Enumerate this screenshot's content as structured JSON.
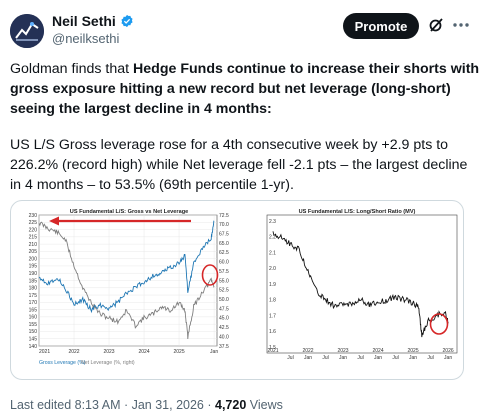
{
  "post": {
    "author_name": "Neil Sethi",
    "author_handle": "@neilksethi",
    "promote_label": "Promote",
    "text_intro": "Goldman finds that ",
    "text_bold": "Hedge Funds continue to increase their shorts with gross exposure hitting a new record but net leverage (long-short) seeing the largest decline in 4 months:",
    "text_2": "US L/S Gross leverage rose for a 4th consecutive week by +2.9 pts to 226.2% (record high) while Net leverage fell -2.1 pts – the largest decline in 4 months – to 53.5% (69th percentile 1-yr).",
    "last_edited": "Last edited 8:13 AM · Jan 31, 2026 · ",
    "views_count": "4,720",
    "views_label": " Views"
  },
  "icons": {
    "verified": "verified-badge-icon",
    "grok": "grok-icon",
    "more": "more-icon"
  },
  "colors": {
    "verified": "#1d9bf0",
    "gross_series": "#1f77b4",
    "net_series": "#7f7f7f",
    "highlight": "#d62728"
  },
  "chart_data": [
    {
      "type": "line",
      "title": "US Fundamental L/S: Gross vs Net Leverage",
      "x_tick_labels": [
        "2021",
        "2022",
        "2023",
        "2024",
        "2025",
        "Jan"
      ],
      "y_left_ticks": [
        "230",
        "225",
        "220",
        "215",
        "210",
        "205",
        "200",
        "195",
        "190",
        "185",
        "180",
        "175",
        "170",
        "165",
        "160",
        "155",
        "150",
        "145",
        "140"
      ],
      "y_right_ticks": [
        "72.5",
        "70.0",
        "67.5",
        "65.0",
        "62.5",
        "60.0",
        "57.5",
        "55.0",
        "52.5",
        "50.0",
        "47.5",
        "45.0",
        "42.5",
        "40.0",
        "37.5"
      ],
      "ylim_left": [
        140,
        230
      ],
      "ylim_right": [
        37.5,
        72.5
      ],
      "legend": [
        "Gross Leverage (%)",
        "Net Leverage (%, right)"
      ],
      "legend_position": "bottom",
      "series": [
        {
          "name": "Gross Leverage (%)",
          "axis": "left",
          "x": [
            "2021-01",
            "2021-04",
            "2021-07",
            "2021-10",
            "2022-01",
            "2022-04",
            "2022-07",
            "2022-10",
            "2023-01",
            "2023-04",
            "2023-07",
            "2023-10",
            "2024-01",
            "2024-04",
            "2024-07",
            "2024-10",
            "2025-01",
            "2025-03",
            "2025-04",
            "2025-06",
            "2025-09",
            "2025-12",
            "2026-01"
          ],
          "values": [
            188,
            183,
            187,
            180,
            168,
            172,
            165,
            168,
            166,
            170,
            176,
            180,
            184,
            188,
            190,
            194,
            197,
            202,
            178,
            196,
            207,
            214,
            226
          ]
        },
        {
          "name": "Net Leverage (%, right)",
          "axis": "right",
          "x": [
            "2021-01",
            "2021-04",
            "2021-07",
            "2021-10",
            "2022-01",
            "2022-04",
            "2022-07",
            "2022-10",
            "2023-01",
            "2023-04",
            "2023-07",
            "2023-10",
            "2024-01",
            "2024-04",
            "2024-07",
            "2024-10",
            "2025-01",
            "2025-03",
            "2025-04",
            "2025-06",
            "2025-09",
            "2025-12",
            "2026-01"
          ],
          "values": [
            70.5,
            69,
            68,
            66,
            59,
            53,
            49,
            46,
            45,
            44,
            47,
            43,
            45,
            46,
            48,
            47,
            49,
            47,
            40,
            48,
            52,
            55,
            53.5
          ]
        }
      ],
      "annotations": [
        "arrow pointing to record gross level",
        "circle around latest net leverage reading"
      ]
    },
    {
      "type": "line",
      "title": "US Fundamental L/S: Long/Short Ratio (MV)",
      "x_tick_labels": [
        "2021",
        "Jul",
        "2022",
        "Jan",
        "Jul",
        "2023",
        "Jan",
        "Jul",
        "2024",
        "Jan",
        "Jul",
        "2025",
        "Jan",
        "Jul",
        "2026",
        "Jan"
      ],
      "y_ticks": [
        "2.3",
        "2.2",
        "2.1",
        "2.0",
        "1.9",
        "1.8",
        "1.7",
        "1.6",
        "1.5"
      ],
      "ylim": [
        1.5,
        2.3
      ],
      "series": [
        {
          "x": [
            "2021-01",
            "2021-04",
            "2021-07",
            "2021-10",
            "2022-01",
            "2022-04",
            "2022-07",
            "2022-10",
            "2023-01",
            "2023-04",
            "2023-07",
            "2023-10",
            "2024-01",
            "2024-04",
            "2024-07",
            "2024-10",
            "2025-01",
            "2025-03",
            "2025-04",
            "2025-06",
            "2025-09",
            "2025-12",
            "2026-01"
          ],
          "values": [
            2.22,
            2.2,
            2.15,
            2.12,
            1.98,
            1.85,
            1.8,
            1.76,
            1.77,
            1.78,
            1.8,
            1.77,
            1.78,
            1.8,
            1.82,
            1.8,
            1.78,
            1.75,
            1.57,
            1.66,
            1.7,
            1.72,
            1.66
          ]
        }
      ],
      "annotations": [
        "circle around latest reading"
      ]
    }
  ]
}
